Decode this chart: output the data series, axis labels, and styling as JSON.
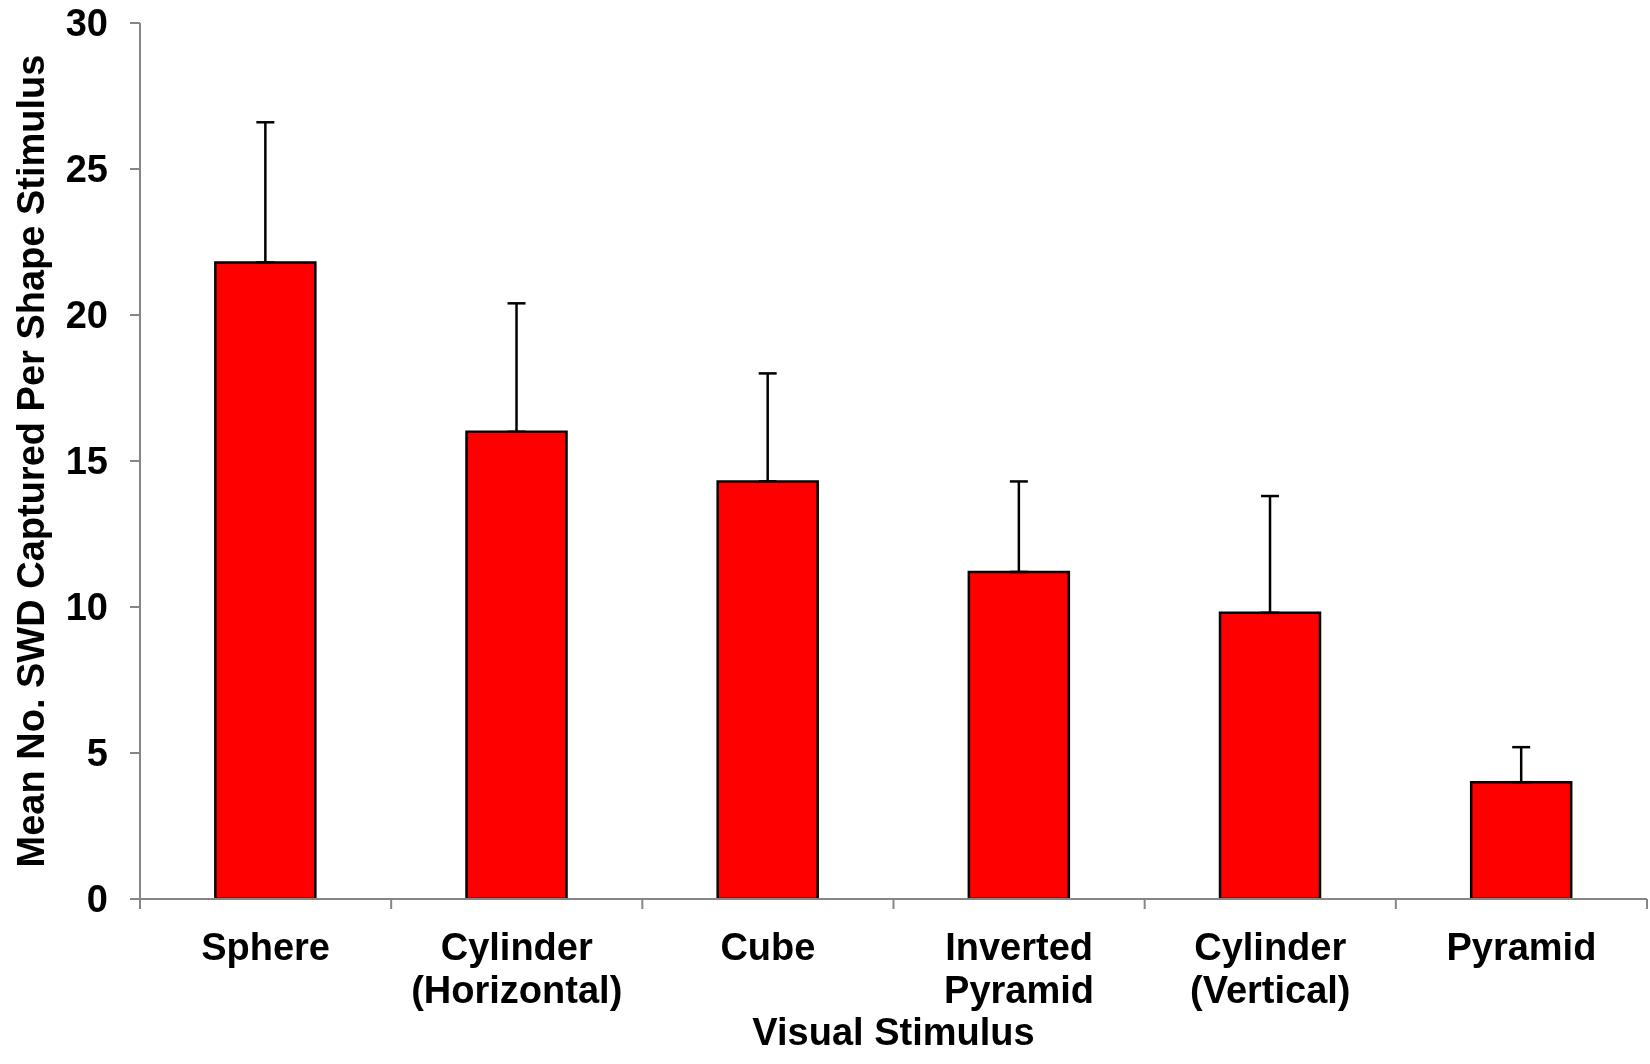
{
  "chart_data": {
    "type": "bar",
    "xlabel": "Visual Stimulus",
    "ylabel": "Mean No. SWD Captured Per Shape Stimulus",
    "categories": [
      "Sphere",
      "Cylinder (Horizontal)",
      "Cube",
      "Inverted Pyramid",
      "Cylinder (Vertical)",
      "Pyramid"
    ],
    "values": [
      21.8,
      16.0,
      14.3,
      11.2,
      9.8,
      4.0
    ],
    "errors": [
      [
        21.8,
        26.6
      ],
      [
        16.0,
        20.4
      ],
      [
        14.3,
        18.0
      ],
      [
        11.2,
        14.3
      ],
      [
        9.8,
        13.8
      ],
      [
        4.0,
        5.2
      ]
    ],
    "color": "#ff0000",
    "ylim": [
      0,
      30
    ],
    "yticks": [
      0,
      5,
      10,
      15,
      20,
      25,
      30
    ]
  }
}
